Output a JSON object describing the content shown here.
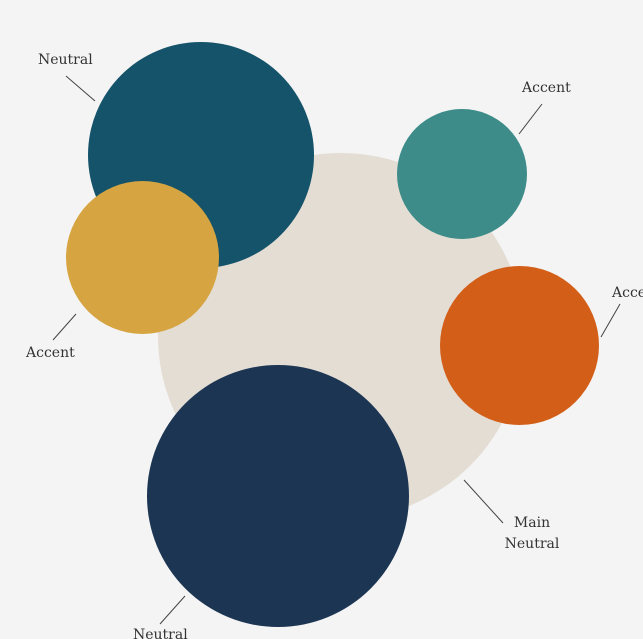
{
  "circles": {
    "main_neutral": {
      "color": "#e3ddd4"
    },
    "neutral_teal": {
      "color": "#15536a"
    },
    "accent_yellow": {
      "color": "#d6a441"
    },
    "accent_teal": {
      "color": "#3d8c8a"
    },
    "accent_orange": {
      "color": "#d35e18"
    },
    "neutral_navy": {
      "color": "#1c3553"
    }
  },
  "labels": {
    "neutral_top": "Neutral",
    "accent_top_right": "Accent",
    "accent_right": "Accent",
    "accent_left": "Accent",
    "main_neutral_line1": "Main",
    "main_neutral_line2": "Neutral",
    "neutral_bottom": "Neutral"
  }
}
